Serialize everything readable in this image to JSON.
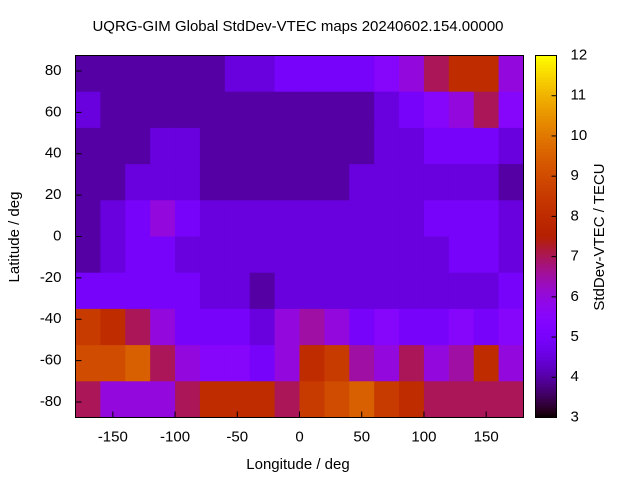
{
  "chart_data": {
    "type": "heatmap",
    "title": "UQRG-GIM Global StdDev-VTEC maps 20240602.154.00000",
    "x_label": "Longitude / deg",
    "y_label": "Latitude / deg",
    "colorbar_label": "StdDev-VTEC / TECU",
    "x": [
      -170,
      -150,
      -130,
      -110,
      -90,
      -70,
      -50,
      -30,
      -10,
      10,
      30,
      50,
      70,
      90,
      110,
      130,
      150,
      170
    ],
    "y": [
      78.75,
      61.25,
      43.75,
      26.25,
      8.75,
      -8.75,
      -26.25,
      -43.75,
      -61.25,
      -78.75
    ],
    "z": [
      [
        4,
        4,
        4,
        4,
        4,
        4,
        4.5,
        4.5,
        5,
        5,
        5,
        5,
        5.5,
        6,
        7,
        8,
        8,
        6
      ],
      [
        4.5,
        4,
        4,
        4,
        4,
        4,
        4,
        4,
        4,
        4,
        4,
        4,
        4.5,
        5,
        5.5,
        6,
        7,
        5.5
      ],
      [
        4,
        4,
        4,
        4.5,
        4.5,
        4,
        4,
        4,
        4,
        4,
        4,
        4,
        4.5,
        4.5,
        5,
        5,
        5,
        4.5
      ],
      [
        4,
        4,
        4.5,
        4.5,
        4.5,
        4,
        4,
        4,
        4,
        4,
        4,
        4.5,
        4.5,
        4.5,
        4.5,
        4.5,
        4.5,
        4
      ],
      [
        4,
        4.5,
        5,
        6,
        5,
        4.5,
        4.5,
        4.5,
        4.5,
        4.5,
        4.5,
        4.5,
        4.5,
        4.5,
        5,
        5,
        5,
        4.5
      ],
      [
        4,
        4.5,
        5,
        5,
        4.5,
        4.5,
        4.5,
        4.5,
        4.5,
        4.5,
        4.5,
        4.5,
        4.5,
        4.5,
        4.5,
        5,
        5,
        4.5
      ],
      [
        5,
        5,
        5,
        5,
        5,
        4.5,
        4.5,
        4,
        4.5,
        4.5,
        4.5,
        4.5,
        4.5,
        4.5,
        4.5,
        4.5,
        4.5,
        5
      ],
      [
        8.5,
        8,
        7,
        6,
        5,
        5,
        5,
        4.5,
        6,
        6.5,
        6,
        5,
        5.5,
        5,
        5,
        5.5,
        5,
        5.5
      ],
      [
        9,
        9,
        9.5,
        7,
        6,
        5.5,
        5.5,
        5,
        6,
        8,
        8.5,
        6.5,
        6,
        7,
        6,
        6.5,
        8,
        6
      ],
      [
        7,
        6,
        6,
        6,
        7,
        8,
        8,
        8,
        7,
        8.5,
        9,
        9.5,
        8.5,
        8,
        7,
        7,
        7,
        7
      ]
    ],
    "xlim": [
      -180,
      180
    ],
    "ylim": [
      -87.5,
      87.5
    ],
    "xticks": [
      -150,
      -100,
      -50,
      0,
      50,
      100,
      150
    ],
    "yticks": [
      -80,
      -60,
      -40,
      -20,
      0,
      20,
      40,
      60,
      80
    ],
    "clim": [
      3,
      12
    ],
    "cticks": [
      3,
      4,
      5,
      6,
      7,
      8,
      9,
      10,
      11,
      12
    ]
  }
}
